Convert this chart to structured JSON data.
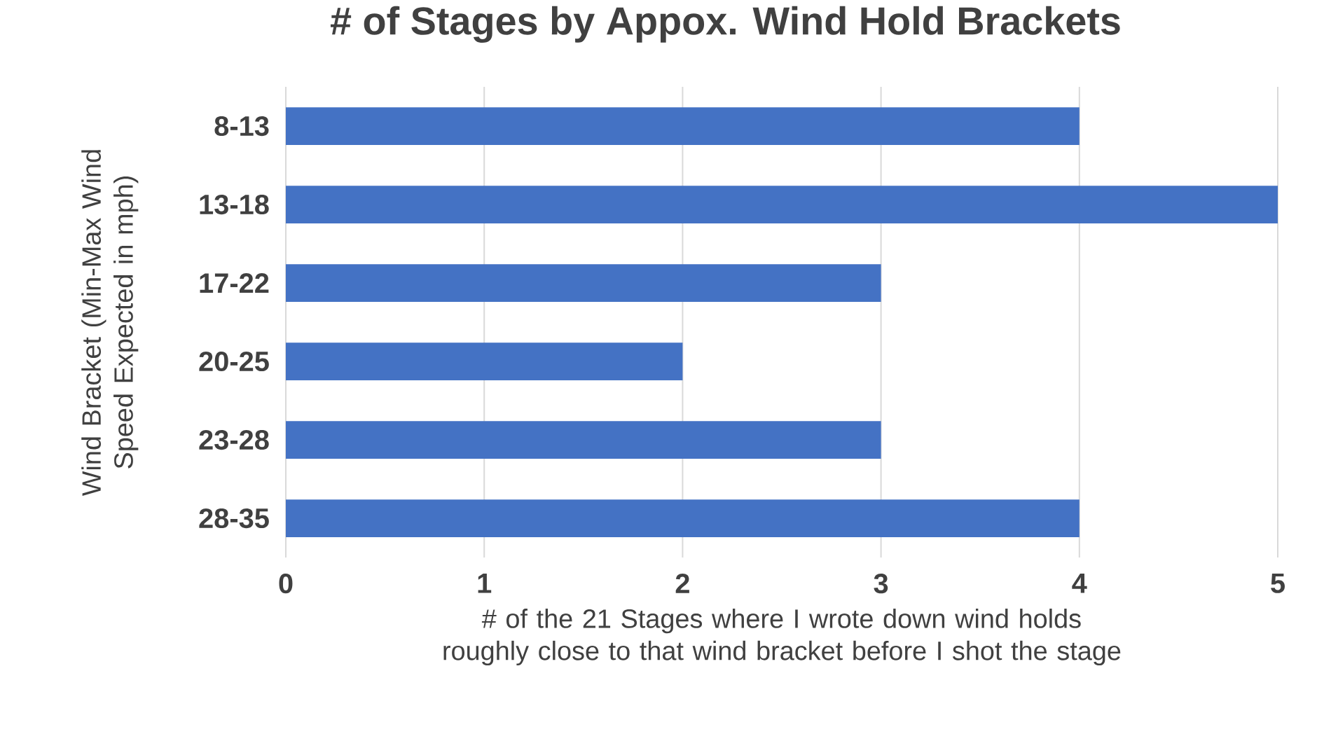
{
  "chart_data": {
    "type": "bar",
    "orientation": "horizontal",
    "title": "# of Stages by Appox. Wind Hold Brackets",
    "xlabel": "# of the 21 Stages where I wrote down wind holds roughly close to that wind bracket before I shot the stage",
    "ylabel": "Wind Bracket (Min-Max Wind Speed Expected in mph)",
    "categories": [
      "8-13",
      "13-18",
      "17-22",
      "20-25",
      "23-28",
      "28-35"
    ],
    "values": [
      4,
      5,
      3,
      2,
      3,
      4
    ],
    "color": "#4472c4",
    "xlim": [
      0,
      5
    ],
    "xticks": [
      0,
      1,
      2,
      3,
      4,
      5
    ],
    "grid": "x"
  }
}
